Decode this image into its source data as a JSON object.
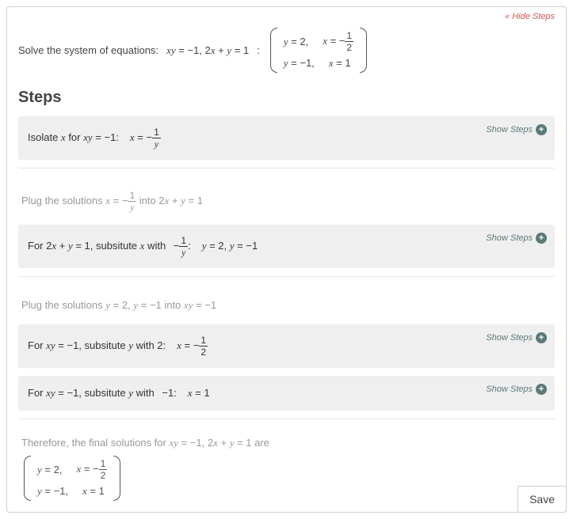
{
  "hide_steps_label": "« Hide Steps",
  "problem_prefix": "Solve the system of equations:",
  "problem_eq_html": "<span class='math-i'>xy</span> = −1, 2<span class='math-i'>x</span> + <span class='math-i'>y</span> = 1",
  "colon": ":",
  "solution_rows": [
    {
      "c1_html": "<span class='math-i'>y</span> = 2,",
      "c2_html": "<span class='math-i'>x</span> = −<span class='frac'><span class='num'>1</span><span class='den'>2</span></span>"
    },
    {
      "c1_html": "<span class='math-i'>y</span> = −1,",
      "c2_html": "<span class='math-i'>x</span> = 1"
    }
  ],
  "steps_heading": "Steps",
  "show_steps_label": "Show Steps",
  "save_label": "Save",
  "step1_html": "Isolate <span class='math-i'>x</span> for <span class='math-i'>xy</span> = −1:<span class='gap'></span><span class='math-i'>x</span> = −<span class='frac'><span class='num'>1</span><span class='den math-i'>y</span></span>",
  "step2_html": "Plug the solutions <span class='math-i'>x</span> = −<span class='frac'><span class='num'>1</span><span class='den math-i'>y</span></span> into 2<span class='math-i'>x</span> + <span class='math-i'>y</span> = 1",
  "step3_html": "For 2<span class='math-i'>x</span> + <span class='math-i'>y</span> = 1, subsitute <span class='math-i'>x</span> with <span class='sgap'></span>−<span class='frac'><span class='num'>1</span><span class='den math-i'>y</span></span>:<span class='gap'></span><span class='math-i'>y</span> = 2, <span class='math-i'>y</span> = −1",
  "step4_html": "Plug the solutions <span class='math-i'>y</span> = 2, <span class='math-i'>y</span> = −1 into <span class='math-i'>xy</span> = −1",
  "step5_html": "For <span class='math-i'>xy</span> = −1, subsitute <span class='math-i'>y</span> with 2:<span class='gap'></span><span class='math-i'>x</span> = −<span class='frac'><span class='num'>1</span><span class='den'>2</span></span>",
  "step6_html": "For <span class='math-i'>xy</span> = −1, subsitute <span class='math-i'>y</span> with <span class='sgap'></span>−1:<span class='gap'></span><span class='math-i'>x</span> = 1",
  "final_text_html": "Therefore, the final solutions for <span class='math-i'>xy</span> = −1, 2<span class='math-i'>x</span> + <span class='math-i'>y</span> = 1 are",
  "colors": {
    "hide_steps": "#d9534f",
    "show_steps": "#5a7a7a",
    "box_bg": "#efefef",
    "border": "#d0d0d0",
    "text": "#444444",
    "muted": "#999999"
  }
}
